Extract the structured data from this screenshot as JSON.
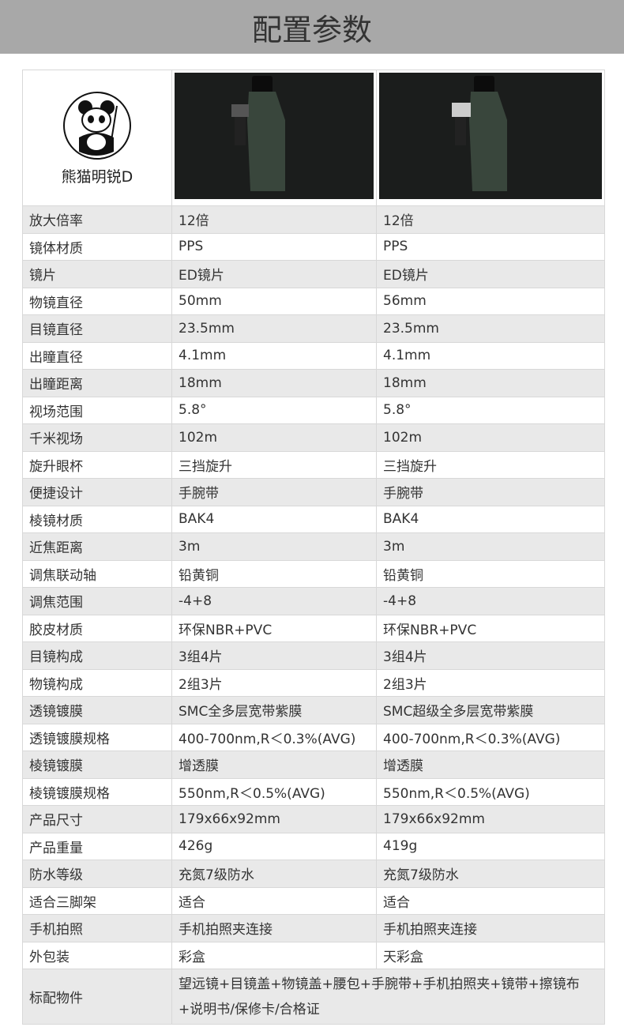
{
  "header": {
    "title": "配置参数"
  },
  "table": {
    "model": "熊猫明锐D",
    "rows": [
      [
        "放大倍率",
        "12倍",
        "12倍"
      ],
      [
        "镜体材质",
        "PPS",
        "PPS"
      ],
      [
        "镜片",
        "ED镜片",
        "ED镜片"
      ],
      [
        "物镜直径",
        "50mm",
        "56mm"
      ],
      [
        "目镜直径",
        "23.5mm",
        "23.5mm"
      ],
      [
        "出瞳直径",
        "4.1mm",
        "4.1mm"
      ],
      [
        "出瞳距离",
        "18mm",
        "18mm"
      ],
      [
        "视场范围",
        "5.8°",
        "5.8°"
      ],
      [
        "千米视场",
        "102m",
        "102m"
      ],
      [
        "旋升眼杯",
        "三挡旋升",
        "三挡旋升"
      ],
      [
        "便捷设计",
        "手腕带",
        "手腕带"
      ],
      [
        "棱镜材质",
        "BAK4",
        "BAK4"
      ],
      [
        "近焦距离",
        "3m",
        "3m"
      ],
      [
        "调焦联动轴",
        "铅黄铜",
        "铅黄铜"
      ],
      [
        "调焦范围",
        "-4+8",
        "-4+8"
      ],
      [
        "胶皮材质",
        "环保NBR+PVC",
        "环保NBR+PVC"
      ],
      [
        "目镜构成",
        "3组4片",
        "3组4片"
      ],
      [
        "物镜构成",
        "2组3片",
        "2组3片"
      ],
      [
        "透镜镀膜",
        "SMC全多层宽带紫膜",
        "SMC超级全多层宽带紫膜"
      ],
      [
        "透镜镀膜规格",
        "400-700nm,R＜0.3%(AVG)",
        "400-700nm,R＜0.3%(AVG)"
      ],
      [
        "棱镜镀膜",
        "增透膜",
        "增透膜"
      ],
      [
        "棱镜镀膜规格",
        "550nm,R＜0.5%(AVG)",
        "550nm,R＜0.5%(AVG)"
      ],
      [
        "产品尺寸",
        "179x66x92mm",
        "179x66x92mm"
      ],
      [
        "产品重量",
        "426g",
        "419g"
      ],
      [
        "防水等级",
        "充氮7级防水",
        "充氮7级防水"
      ],
      [
        "适合三脚架",
        "适合",
        "适合"
      ],
      [
        "手机拍照",
        "手机拍照夹连接",
        "手机拍照夹连接"
      ],
      [
        "外包装",
        "彩盒",
        "天彩盒"
      ]
    ],
    "footer_row": [
      "标配物件",
      "望远镜+目镜盖+物镜盖+腰包+手腕带+手机拍照夹+镜带+擦镜布+说明书/保修卡/合格证"
    ]
  }
}
